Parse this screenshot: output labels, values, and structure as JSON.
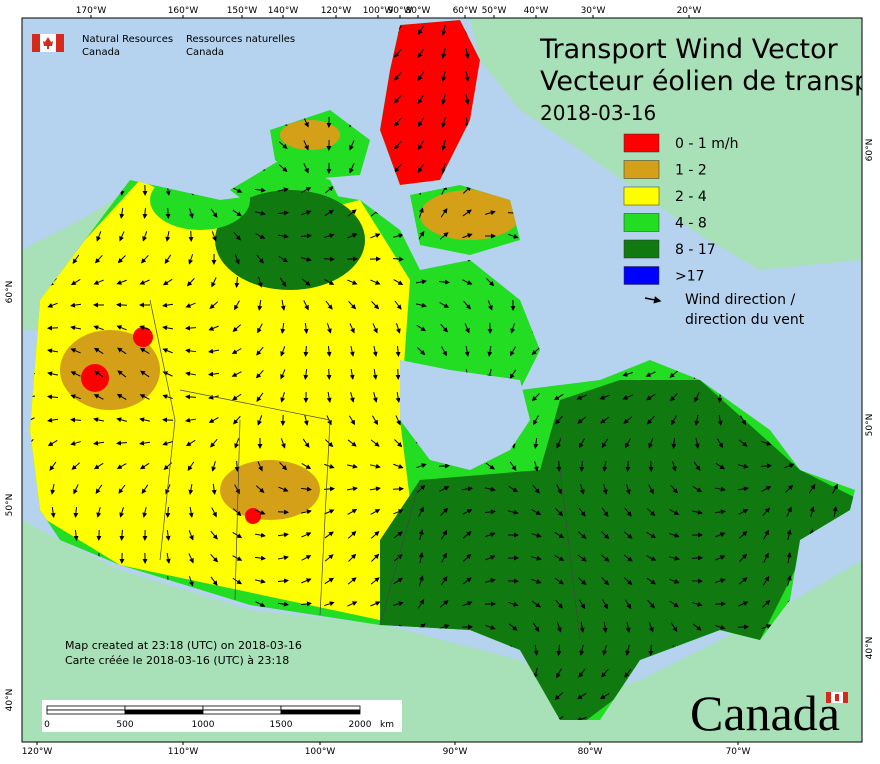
{
  "agency": {
    "en_line1": "Natural Resources",
    "en_line2": "Canada",
    "fr_line1": "Ressources naturelles",
    "fr_line2": "Canada"
  },
  "title": {
    "line1": "Transport Wind Vector",
    "line2": "Vecteur éolien de transp",
    "date": "2018-03-16"
  },
  "legend": {
    "items": [
      {
        "label": "0 - 1 m/h",
        "color": "#ff0000"
      },
      {
        "label": "1 - 2",
        "color": "#d4a017"
      },
      {
        "label": "2 - 4",
        "color": "#ffff00"
      },
      {
        "label": "4 - 8",
        "color": "#22dd22"
      },
      {
        "label": "8 - 17",
        "color": "#107a10"
      },
      {
        "label": ">17",
        "color": "#0000ff"
      }
    ],
    "arrow_label_en": "Wind direction /",
    "arrow_label_fr": "direction du vent"
  },
  "footer": {
    "created_en": "Map created at 23:18 (UTC) on 2018-03-16",
    "created_fr": "Carte créée le 2018-03-16 (UTC) à 23:18"
  },
  "scale_bar": {
    "labels": [
      "0",
      "500",
      "1000",
      "1500",
      "2000"
    ],
    "unit": "km"
  },
  "graticule": {
    "top": [
      "170°W",
      "160°W",
      "150°W",
      "140°W",
      "120°W",
      "100°W",
      "90°W",
      "80°W",
      "60°W",
      "50°W",
      "40°W",
      "30°W",
      "20°W"
    ],
    "bottom": [
      "120°W",
      "110°W",
      "100°W",
      "90°W",
      "80°W",
      "70°W"
    ],
    "left": [
      "60°N",
      "50°N",
      "40°N"
    ],
    "right": [
      "60°N",
      "50°N",
      "40°N"
    ]
  },
  "wordmark": "Canada"
}
